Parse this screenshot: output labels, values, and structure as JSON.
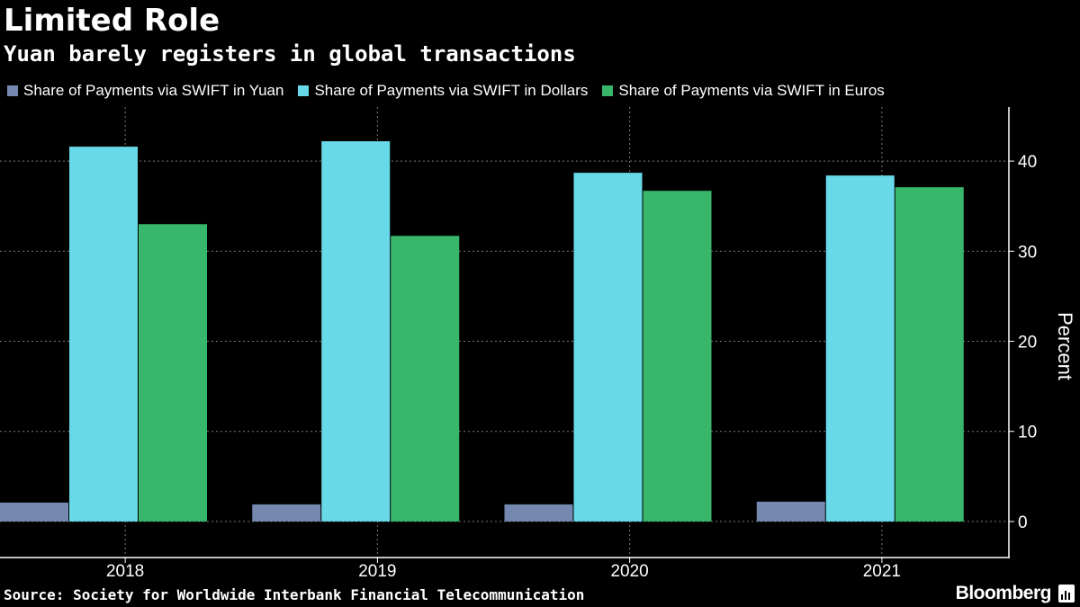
{
  "chart_data": {
    "type": "bar",
    "title": "Limited Role",
    "subtitle": "Yuan barely registers in global transactions",
    "categories": [
      "2018",
      "2019",
      "2020",
      "2021"
    ],
    "series": [
      {
        "name": "Share of Payments via SWIFT in Yuan",
        "color": "#7589b0",
        "values": [
          2.1,
          1.9,
          1.9,
          2.2
        ]
      },
      {
        "name": "Share of Payments via SWIFT in Dollars",
        "color": "#68d9e8",
        "values": [
          41.6,
          42.2,
          38.7,
          38.4
        ]
      },
      {
        "name": "Share of Payments via SWIFT in Euros",
        "color": "#37b66c",
        "values": [
          33.0,
          31.7,
          36.7,
          37.1
        ]
      }
    ],
    "xlabel": "",
    "ylabel": "Percent",
    "ylim": [
      -4,
      46
    ],
    "yticks": [
      0,
      10,
      20,
      30,
      40
    ],
    "grid": true,
    "legend": "top-left",
    "source": "Source: Society for Worldwide Interbank Financial Telecommunication",
    "brand": "Bloomberg"
  }
}
